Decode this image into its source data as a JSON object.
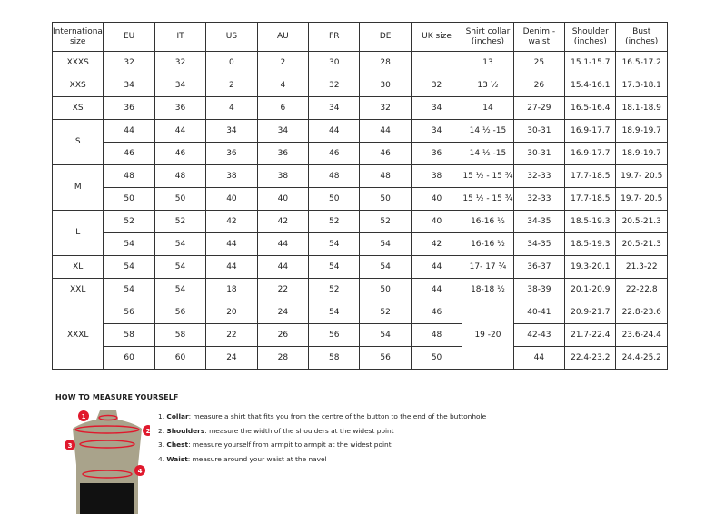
{
  "table": {
    "headers": [
      "International size",
      "EU",
      "IT",
      "US",
      "AU",
      "FR",
      "DE",
      "UK size",
      "Shirt collar (inches)",
      "Denim - waist",
      "Shoulder (inches)",
      "Bust (inches)"
    ],
    "groups": [
      {
        "size": "XXXS",
        "rows": [
          [
            "32",
            "32",
            "0",
            "2",
            "30",
            "28",
            "",
            "13",
            "25",
            "15.1-15.7",
            "16.5-17.2"
          ]
        ]
      },
      {
        "size": "XXS",
        "rows": [
          [
            "34",
            "34",
            "2",
            "4",
            "32",
            "30",
            "32",
            "13 ½",
            "26",
            "15.4-16.1",
            "17.3-18.1"
          ]
        ]
      },
      {
        "size": "XS",
        "rows": [
          [
            "36",
            "36",
            "4",
            "6",
            "34",
            "32",
            "34",
            "14",
            "27-29",
            "16.5-16.4",
            "18.1-18.9"
          ]
        ]
      },
      {
        "size": "S",
        "rows": [
          [
            "44",
            "44",
            "34",
            "34",
            "44",
            "44",
            "34",
            "14 ½ -15",
            "30-31",
            "16.9-17.7",
            "18.9-19.7"
          ],
          [
            "46",
            "46",
            "36",
            "36",
            "46",
            "46",
            "36",
            "14 ½ -15",
            "30-31",
            "16.9-17.7",
            "18.9-19.7"
          ]
        ]
      },
      {
        "size": "M",
        "rows": [
          [
            "48",
            "48",
            "38",
            "38",
            "48",
            "48",
            "38",
            "15 ½ - 15 ¾",
            "32-33",
            "17.7-18.5",
            "19.7- 20.5"
          ],
          [
            "50",
            "50",
            "40",
            "40",
            "50",
            "50",
            "40",
            "15 ½ - 15 ¾",
            "32-33",
            "17.7-18.5",
            "19.7- 20.5"
          ]
        ]
      },
      {
        "size": "L",
        "rows": [
          [
            "52",
            "52",
            "42",
            "42",
            "52",
            "52",
            "40",
            "16-16 ½",
            "34-35",
            "18.5-19.3",
            "20.5-21.3"
          ],
          [
            "54",
            "54",
            "44",
            "44",
            "54",
            "54",
            "42",
            "16-16 ½",
            "34-35",
            "18.5-19.3",
            "20.5-21.3"
          ]
        ]
      },
      {
        "size": "XL",
        "rows": [
          [
            "54",
            "54",
            "44",
            "44",
            "54",
            "54",
            "44",
            "17- 17 ¾",
            "36-37",
            "19.3-20.1",
            "21.3-22"
          ]
        ]
      },
      {
        "size": "XXL",
        "rows": [
          [
            "54",
            "54",
            "18",
            "22",
            "52",
            "50",
            "44",
            "18-18 ½",
            "38-39",
            "20.1-20.9",
            "22-22.8"
          ]
        ]
      },
      {
        "size": "XXXL",
        "collar": "19 -20",
        "rows": [
          [
            "56",
            "56",
            "20",
            "24",
            "54",
            "52",
            "46",
            "40-41",
            "20.9-21.7",
            "22.8-23.6"
          ],
          [
            "58",
            "58",
            "22",
            "26",
            "56",
            "54",
            "48",
            "42-43",
            "21.7-22.4",
            "23.6-24.4"
          ],
          [
            "60",
            "60",
            "24",
            "28",
            "58",
            "56",
            "50",
            "44",
            "22.4-23.2",
            "24.4-25.2"
          ]
        ]
      }
    ]
  },
  "howto": {
    "title": "HOW TO MEASURE YOURSELF",
    "steps": [
      {
        "num": "1.",
        "term": "Collar",
        "text": ": measure a shirt that fits you from the centre of the button to the end of the buttonhole"
      },
      {
        "num": "2.",
        "term": "Shoulders",
        "text": ": measure the width of the shoulders at the widest point"
      },
      {
        "num": "3.",
        "term": "Chest",
        "text": ": measure yourself from armpit to armpit at the widest point"
      },
      {
        "num": "4.",
        "term": "Waist",
        "text": ": measure around your waist at the navel"
      }
    ],
    "markers": [
      "1",
      "2",
      "3",
      "4"
    ],
    "colors": {
      "accent": "#e0192d",
      "torso": "#a9a38b",
      "shorts": "#111111"
    }
  }
}
